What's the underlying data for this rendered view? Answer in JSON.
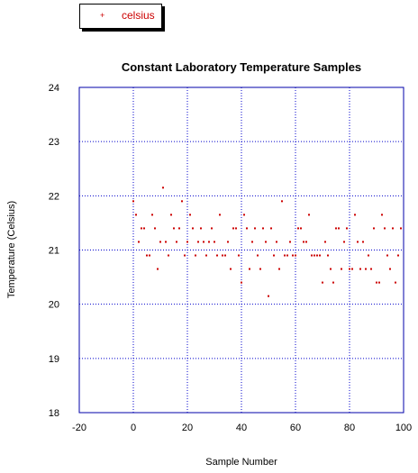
{
  "colors": {
    "series": "#cc0000",
    "axes": "#0000aa",
    "grid": "#0000cc",
    "text": "#000000",
    "legend_text": "#cc0000"
  },
  "legend": {
    "label": "celsius",
    "marker": "+"
  },
  "chart_data": {
    "type": "scatter",
    "title": "Constant Laboratory Temperature Samples",
    "xlabel": "Sample Number",
    "ylabel": "Temperature (Celsius)",
    "xlim": [
      -20,
      100
    ],
    "ylim": [
      18,
      24
    ],
    "xticks": [
      "-20",
      "0",
      "20",
      "40",
      "60",
      "80",
      "100"
    ],
    "yticks": [
      "18",
      "19",
      "20",
      "21",
      "22",
      "23",
      "24"
    ],
    "grid": true,
    "legend_position": "top-left",
    "series": [
      {
        "name": "celsius",
        "x": [
          0,
          1,
          2,
          3,
          4,
          5,
          6,
          7,
          8,
          9,
          10,
          11,
          12,
          13,
          14,
          15,
          16,
          17,
          18,
          19,
          20,
          21,
          22,
          23,
          24,
          25,
          26,
          27,
          28,
          29,
          30,
          31,
          32,
          33,
          34,
          35,
          36,
          37,
          38,
          39,
          40,
          41,
          42,
          43,
          44,
          45,
          46,
          47,
          48,
          49,
          50,
          51,
          52,
          53,
          54,
          55,
          56,
          57,
          58,
          59,
          60,
          61,
          62,
          63,
          64,
          65,
          66,
          67,
          68,
          69,
          70,
          71,
          72,
          73,
          74,
          75,
          76,
          77,
          78,
          79,
          80,
          81,
          82,
          83,
          84,
          85,
          86,
          87,
          88,
          89,
          90,
          91,
          92,
          93,
          94,
          95,
          96,
          97,
          98,
          99
        ],
        "y": [
          21.9,
          21.65,
          21.15,
          21.4,
          21.4,
          20.9,
          20.9,
          21.65,
          21.4,
          20.65,
          21.15,
          22.15,
          21.15,
          20.9,
          21.65,
          21.4,
          21.15,
          21.4,
          21.9,
          20.9,
          21.15,
          21.65,
          21.4,
          20.9,
          21.15,
          21.4,
          21.15,
          20.9,
          21.15,
          21.4,
          21.15,
          20.9,
          21.65,
          20.9,
          20.9,
          21.15,
          20.65,
          21.4,
          21.4,
          20.9,
          20.4,
          21.65,
          21.4,
          20.65,
          21.15,
          21.4,
          20.9,
          20.65,
          21.4,
          21.15,
          20.15,
          21.4,
          20.9,
          21.15,
          20.65,
          21.9,
          20.9,
          20.9,
          21.15,
          20.9,
          20.9,
          21.4,
          21.4,
          21.15,
          21.15,
          21.65,
          20.9,
          20.9,
          20.9,
          20.9,
          20.4,
          21.15,
          20.9,
          20.65,
          20.4,
          21.4,
          21.4,
          20.65,
          21.15,
          21.4,
          20.65,
          20.65,
          21.65,
          21.15,
          20.65,
          21.15,
          20.65,
          20.9,
          20.65,
          21.4,
          20.4,
          20.4,
          21.65,
          21.4,
          20.9,
          20.65,
          21.4,
          20.4,
          20.9,
          21.4
        ]
      }
    ]
  }
}
